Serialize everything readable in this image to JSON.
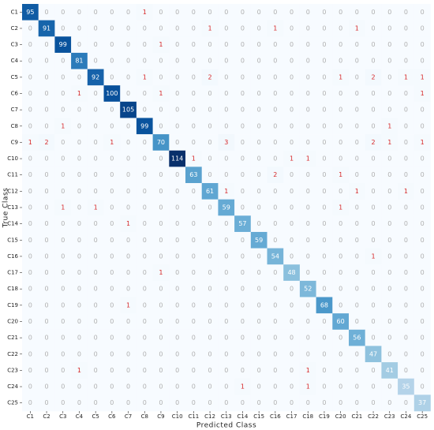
{
  "chart_data": {
    "type": "heatmap",
    "x_label": "Predicted Class",
    "y_label": "True Class",
    "x_categories": [
      "C1",
      "C2",
      "C3",
      "C4",
      "C5",
      "C6",
      "C7",
      "C8",
      "C9",
      "C10",
      "C11",
      "C12",
      "C13",
      "C14",
      "C15",
      "C16",
      "C17",
      "C18",
      "C19",
      "C20",
      "C21",
      "C22",
      "C23",
      "C24",
      "C25"
    ],
    "y_categories": [
      "C1",
      "C2",
      "C3",
      "C4",
      "C5",
      "C6",
      "C7",
      "C8",
      "C9",
      "C10",
      "C11",
      "C12",
      "C13",
      "C14",
      "C15",
      "C16",
      "C17",
      "C18",
      "C19",
      "C20",
      "C21",
      "C22",
      "C23",
      "C24",
      "C25"
    ],
    "colormap": [
      "#f7fbff",
      "#deebf7",
      "#c6dbef",
      "#9ecae1",
      "#6baed6",
      "#4292c6",
      "#2171b5",
      "#08519c",
      "#08306b"
    ],
    "values": [
      [
        95,
        0,
        0,
        0,
        0,
        0,
        0,
        1,
        0,
        0,
        0,
        0,
        0,
        0,
        0,
        0,
        0,
        0,
        0,
        0,
        0,
        0,
        0,
        0,
        0
      ],
      [
        0,
        91,
        0,
        0,
        0,
        0,
        0,
        0,
        0,
        0,
        0,
        1,
        0,
        0,
        0,
        1,
        0,
        0,
        0,
        0,
        1,
        0,
        0,
        0,
        0
      ],
      [
        0,
        0,
        99,
        0,
        0,
        0,
        0,
        0,
        1,
        0,
        0,
        0,
        0,
        0,
        0,
        0,
        0,
        0,
        0,
        0,
        0,
        0,
        0,
        0,
        0
      ],
      [
        0,
        0,
        0,
        81,
        0,
        0,
        0,
        0,
        0,
        0,
        0,
        0,
        0,
        0,
        0,
        0,
        0,
        0,
        0,
        0,
        0,
        0,
        0,
        0,
        0
      ],
      [
        0,
        0,
        0,
        0,
        92,
        0,
        0,
        1,
        0,
        0,
        0,
        2,
        0,
        0,
        0,
        0,
        0,
        0,
        0,
        1,
        0,
        2,
        0,
        1,
        1
      ],
      [
        0,
        0,
        0,
        1,
        0,
        100,
        0,
        0,
        1,
        0,
        0,
        0,
        0,
        0,
        0,
        0,
        0,
        0,
        0,
        0,
        0,
        0,
        0,
        0,
        1
      ],
      [
        0,
        0,
        0,
        0,
        0,
        0,
        105,
        0,
        0,
        0,
        0,
        0,
        0,
        0,
        0,
        0,
        0,
        0,
        0,
        0,
        0,
        0,
        0,
        0,
        0
      ],
      [
        0,
        0,
        1,
        0,
        0,
        0,
        0,
        99,
        0,
        0,
        0,
        0,
        0,
        0,
        0,
        0,
        0,
        0,
        0,
        0,
        0,
        0,
        1,
        0,
        0
      ],
      [
        1,
        2,
        0,
        0,
        0,
        1,
        0,
        0,
        70,
        0,
        0,
        0,
        3,
        0,
        0,
        0,
        0,
        0,
        0,
        0,
        0,
        2,
        1,
        0,
        1
      ],
      [
        0,
        0,
        0,
        0,
        0,
        0,
        0,
        0,
        0,
        114,
        1,
        0,
        0,
        0,
        0,
        0,
        1,
        1,
        0,
        0,
        0,
        0,
        0,
        0,
        0
      ],
      [
        0,
        0,
        0,
        0,
        0,
        0,
        0,
        0,
        0,
        0,
        63,
        0,
        0,
        0,
        0,
        2,
        0,
        0,
        0,
        1,
        0,
        0,
        0,
        0,
        0
      ],
      [
        0,
        0,
        0,
        0,
        0,
        0,
        0,
        0,
        0,
        0,
        0,
        61,
        1,
        0,
        0,
        0,
        0,
        0,
        0,
        0,
        1,
        0,
        0,
        1,
        0
      ],
      [
        0,
        0,
        1,
        0,
        1,
        0,
        0,
        0,
        0,
        0,
        0,
        0,
        59,
        0,
        0,
        0,
        0,
        0,
        0,
        1,
        0,
        0,
        0,
        0,
        0
      ],
      [
        0,
        0,
        0,
        0,
        0,
        0,
        1,
        0,
        0,
        0,
        0,
        0,
        0,
        57,
        0,
        0,
        0,
        0,
        0,
        0,
        0,
        0,
        0,
        0,
        0
      ],
      [
        0,
        0,
        0,
        0,
        0,
        0,
        0,
        0,
        0,
        0,
        0,
        0,
        0,
        0,
        59,
        0,
        0,
        0,
        0,
        0,
        0,
        0,
        0,
        0,
        0
      ],
      [
        0,
        0,
        0,
        0,
        0,
        0,
        0,
        0,
        0,
        0,
        0,
        0,
        0,
        0,
        0,
        54,
        0,
        0,
        0,
        0,
        0,
        1,
        0,
        0,
        0
      ],
      [
        0,
        0,
        0,
        0,
        0,
        0,
        0,
        0,
        1,
        0,
        0,
        0,
        0,
        0,
        0,
        0,
        48,
        0,
        0,
        0,
        0,
        0,
        0,
        0,
        0
      ],
      [
        0,
        0,
        0,
        0,
        0,
        0,
        0,
        0,
        0,
        0,
        0,
        0,
        0,
        0,
        0,
        0,
        0,
        52,
        0,
        0,
        0,
        0,
        0,
        0,
        0
      ],
      [
        0,
        0,
        0,
        0,
        0,
        0,
        1,
        0,
        0,
        0,
        0,
        0,
        0,
        0,
        0,
        0,
        0,
        0,
        68,
        0,
        0,
        0,
        0,
        0,
        0
      ],
      [
        0,
        0,
        0,
        0,
        0,
        0,
        0,
        0,
        0,
        0,
        0,
        0,
        0,
        0,
        0,
        0,
        0,
        0,
        0,
        60,
        0,
        0,
        0,
        0,
        0
      ],
      [
        0,
        0,
        0,
        0,
        0,
        0,
        0,
        0,
        0,
        0,
        0,
        0,
        0,
        0,
        0,
        0,
        0,
        0,
        0,
        0,
        56,
        0,
        0,
        0,
        0
      ],
      [
        0,
        0,
        0,
        0,
        0,
        0,
        0,
        0,
        0,
        0,
        0,
        0,
        0,
        0,
        0,
        0,
        0,
        0,
        0,
        0,
        0,
        47,
        0,
        0,
        0
      ],
      [
        0,
        0,
        0,
        1,
        0,
        0,
        0,
        0,
        0,
        0,
        0,
        0,
        0,
        0,
        0,
        0,
        0,
        1,
        0,
        0,
        0,
        0,
        41,
        0,
        0
      ],
      [
        0,
        0,
        0,
        0,
        0,
        0,
        0,
        0,
        0,
        0,
        0,
        0,
        0,
        1,
        0,
        0,
        0,
        1,
        0,
        0,
        0,
        0,
        0,
        35,
        0
      ],
      [
        0,
        0,
        0,
        0,
        0,
        0,
        0,
        0,
        0,
        0,
        0,
        0,
        0,
        0,
        0,
        0,
        0,
        0,
        0,
        0,
        0,
        0,
        0,
        0,
        37
      ]
    ]
  }
}
